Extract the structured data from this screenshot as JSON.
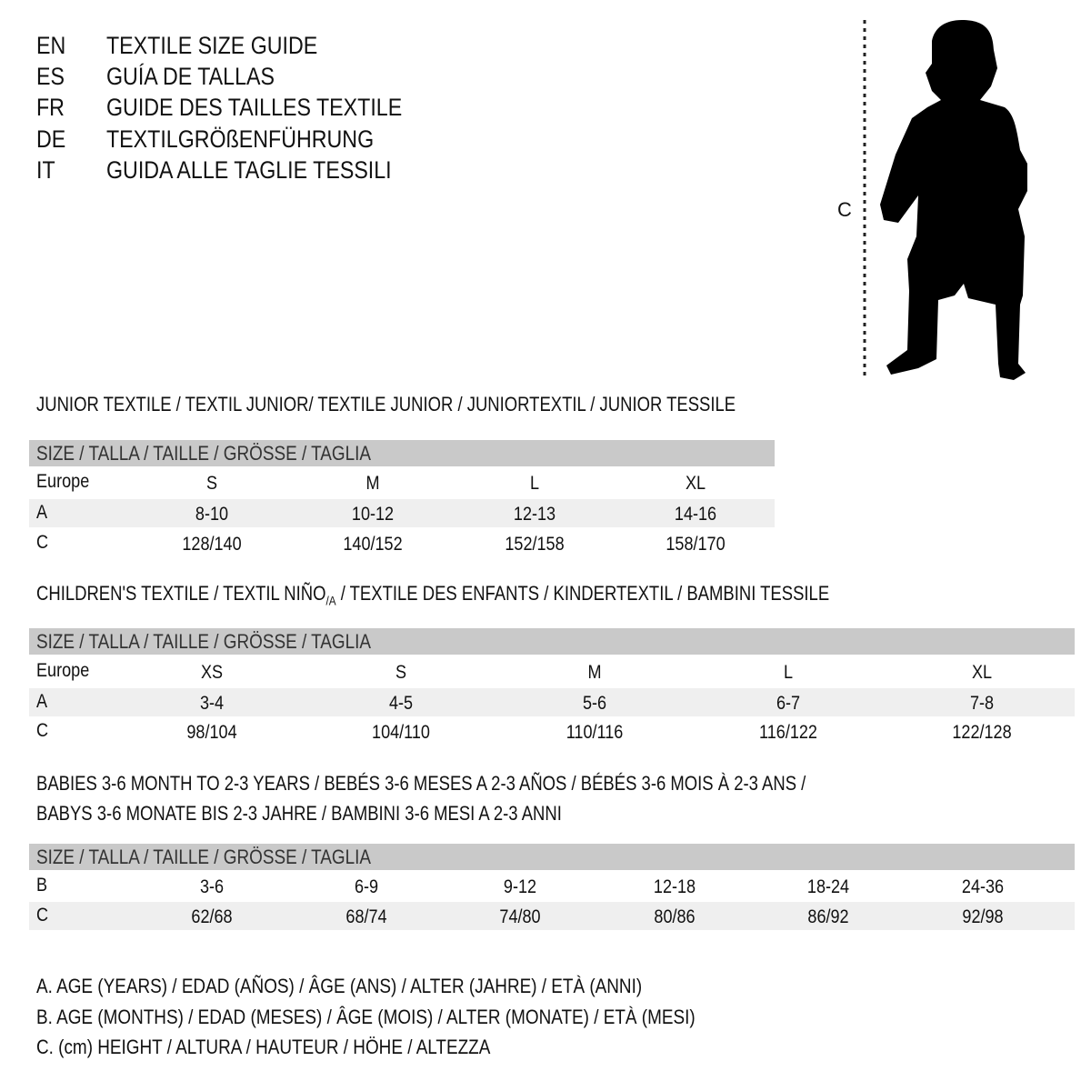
{
  "header": {
    "languages": [
      {
        "code": "EN",
        "title": "TEXTILE SIZE GUIDE"
      },
      {
        "code": "ES",
        "title": "GUÍA DE TALLAS"
      },
      {
        "code": "FR",
        "title": "GUIDE DES TAILLES TEXTILE"
      },
      {
        "code": "DE",
        "title": "TEXTILGRÖßENFÜHRUNG"
      },
      {
        "code": "IT",
        "title": "GUIDA ALLE TAGLIE TESSILI"
      }
    ]
  },
  "figure": {
    "measure_label": "C",
    "icon": "child-silhouette-icon"
  },
  "colors": {
    "header_bar": "#c9c9c9",
    "shaded_row": "#efefef",
    "text": "#111111"
  },
  "junior": {
    "heading": "JUNIOR TEXTILE / TEXTIL JUNIOR/ TEXTILE JUNIOR / JUNIORTEXTIL / JUNIOR TESSILE",
    "size_header": "SIZE / TALLA / TAILLE / GRÖSSE / TAGLIA",
    "rows": [
      {
        "label": "Europe",
        "values": [
          "S",
          "M",
          "L",
          "XL"
        ]
      },
      {
        "label": "A",
        "values": [
          "8-10",
          "10-12",
          "12-13",
          "14-16"
        ]
      },
      {
        "label": "C",
        "values": [
          "128/140",
          "140/152",
          "152/158",
          "158/170"
        ]
      }
    ]
  },
  "children": {
    "heading_part1": "CHILDREN'S TEXTILE / TEXTIL NIÑO",
    "heading_sub": "/A",
    "heading_part2": " / TEXTILE DES ENFANTS / KINDERTEXTIL / BAMBINI TESSILE",
    "size_header": "SIZE / TALLA / TAILLE / GRÖSSE / TAGLIA",
    "rows": [
      {
        "label": "Europe",
        "values": [
          "XS",
          "S",
          "M",
          "L",
          "XL"
        ]
      },
      {
        "label": "A",
        "values": [
          "3-4",
          "4-5",
          "5-6",
          "6-7",
          "7-8"
        ]
      },
      {
        "label": "C",
        "values": [
          "98/104",
          "104/110",
          "110/116",
          "116/122",
          "122/128"
        ]
      }
    ]
  },
  "babies": {
    "heading_line1": "BABIES 3-6 MONTH TO 2-3 YEARS / BEBÉS 3-6 MESES A 2-3 AÑOS / BÉBÉS 3-6 MOIS À 2-3 ANS /",
    "heading_line2": "BABYS 3-6 MONATE BIS 2-3 JAHRE / BAMBINI 3-6 MESI A 2-3 ANNI",
    "size_header": "SIZE / TALLA / TAILLE / GRÖSSE / TAGLIA",
    "rows": [
      {
        "label": "B",
        "values": [
          "3-6",
          "6-9",
          "9-12",
          "12-18",
          "18-24",
          "24-36"
        ]
      },
      {
        "label": "C",
        "values": [
          "62/68",
          "68/74",
          "74/80",
          "80/86",
          "86/92",
          "92/98"
        ]
      }
    ]
  },
  "legend": [
    "A. AGE (YEARS) / EDAD (AÑOS) / ÂGE (ANS) / ALTER (JAHRE) / ETÀ (ANNI)",
    "B. AGE (MONTHS) / EDAD (MESES) / ÂGE (MOIS) / ALTER (MONATE) / ETÀ (MESI)",
    "C. (cm) HEIGHT / ALTURA / HAUTEUR / HÖHE / ALTEZZA"
  ]
}
